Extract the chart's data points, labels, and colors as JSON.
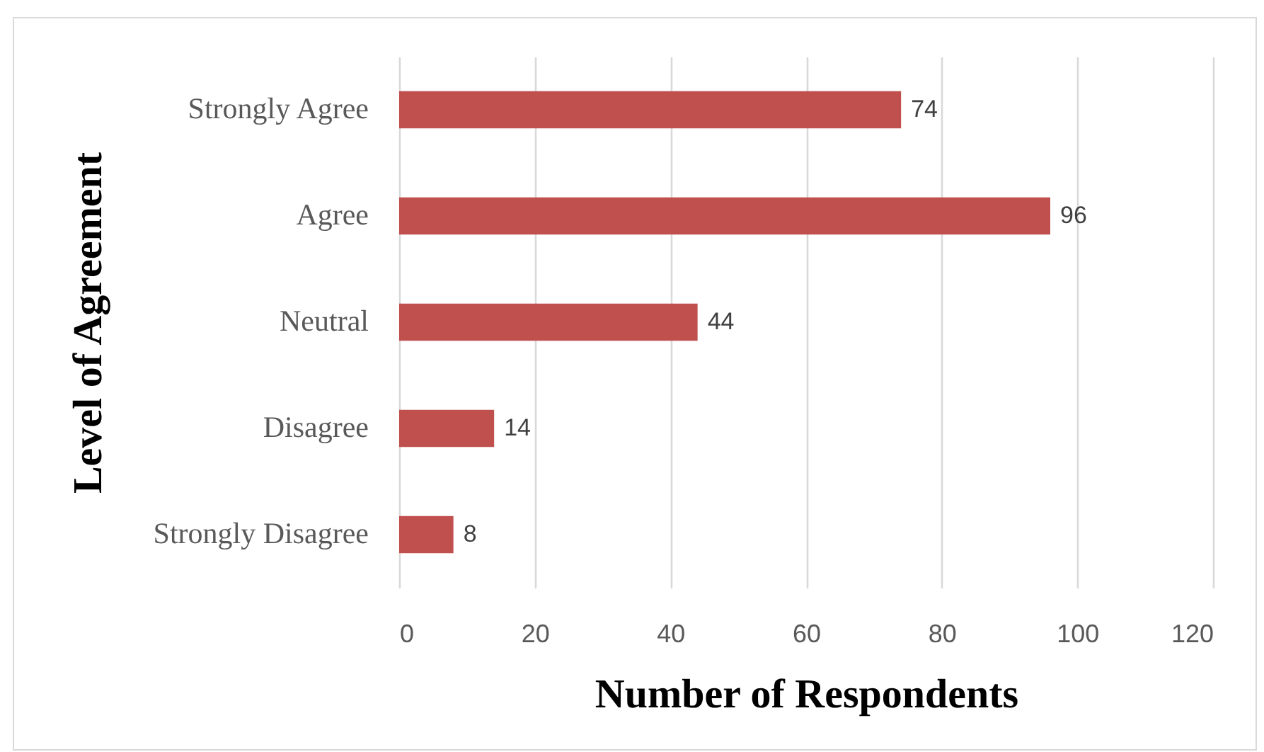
{
  "chart_data": {
    "type": "bar",
    "orientation": "horizontal",
    "categories": [
      "Strongly Agree",
      "Agree",
      "Neutral",
      "Disagree",
      "Strongly Disagree"
    ],
    "values": [
      74,
      96,
      44,
      14,
      8
    ],
    "color": "#c0504d",
    "xlim": [
      0,
      120
    ],
    "xticks": [
      0,
      20,
      40,
      60,
      80,
      100,
      120
    ],
    "xlabel": "Number of Respondents",
    "ylabel": "Level of Agreement",
    "grid": "x",
    "data_labels": true
  }
}
